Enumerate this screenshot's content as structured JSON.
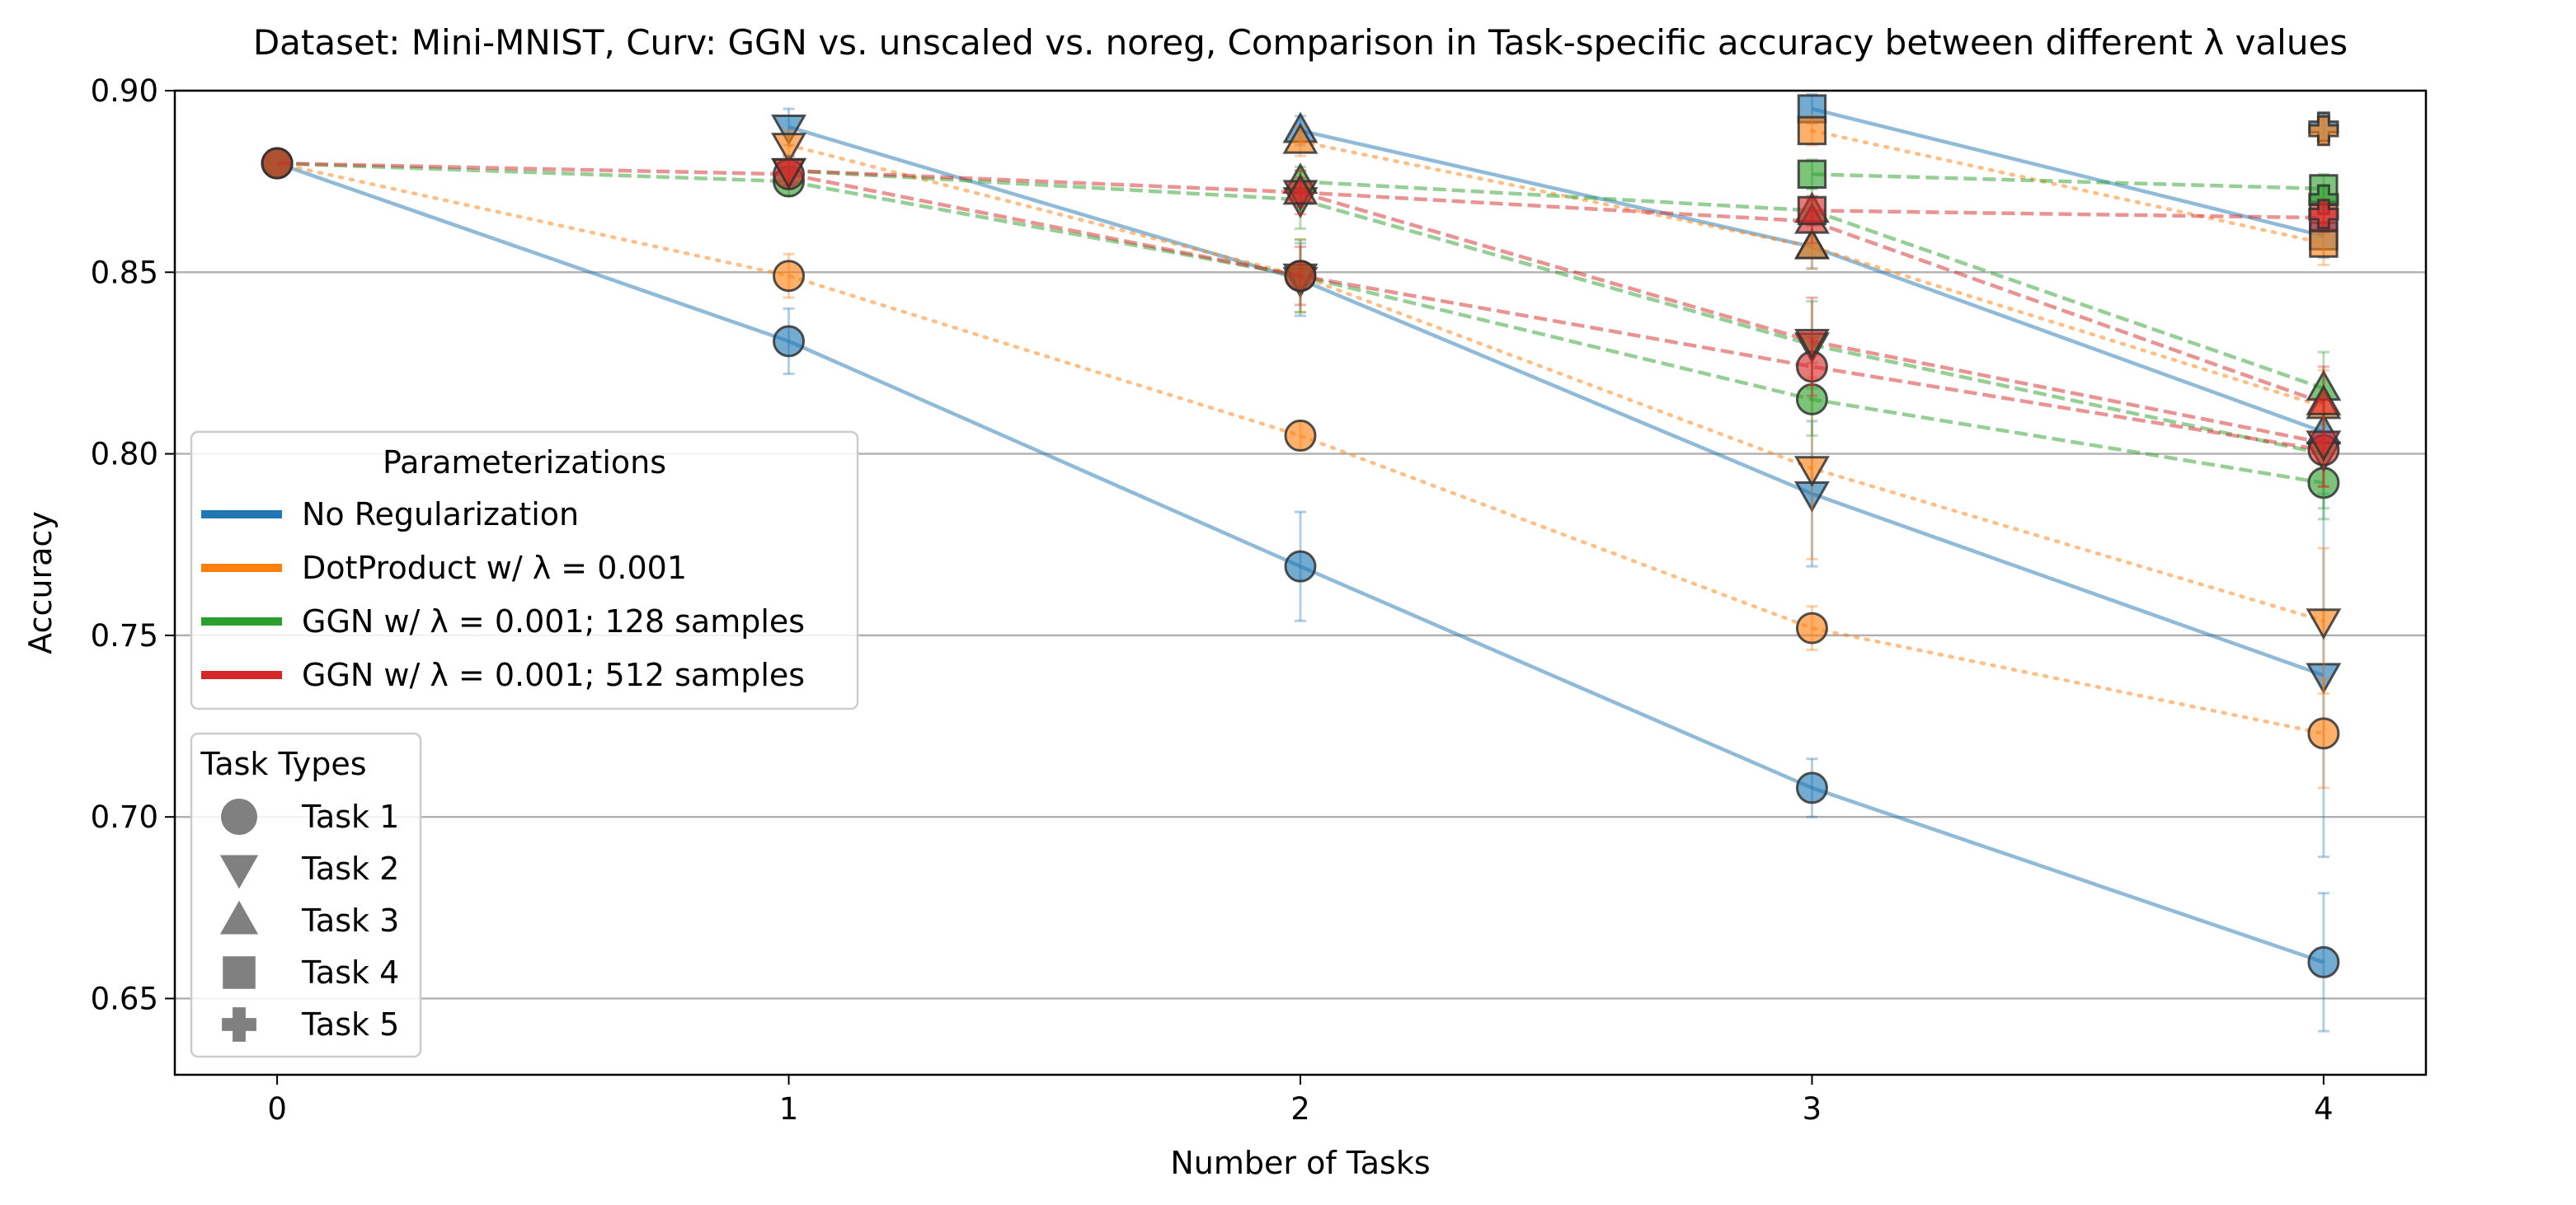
{
  "chart_data": {
    "type": "line",
    "title": "Dataset: Mini-MNIST, Curv: GGN vs. unscaled vs. noreg, Comparison in Task-specific accuracy between different λ values",
    "xlabel": "Number of Tasks",
    "ylabel": "Accuracy",
    "x_ticks": [
      0,
      1,
      2,
      3,
      4
    ],
    "y_ticks": [
      0.65,
      0.7,
      0.75,
      0.8,
      0.85,
      0.9
    ],
    "xlim": [
      -0.2,
      4.2
    ],
    "ylim": [
      0.629,
      0.9
    ],
    "grid": "horizontal",
    "legend_parameterizations": {
      "title": "Parameterizations",
      "placement": "center-left",
      "entries": [
        {
          "label": "No Regularization",
          "color": "#1f77b4"
        },
        {
          "label": "DotProduct w/ λ = 0.001",
          "color": "#ff7f0e"
        },
        {
          "label": "GGN w/ λ = 0.001; 128 samples",
          "color": "#2ca02c"
        },
        {
          "label": "GGN w/ λ = 0.001; 512 samples",
          "color": "#d62728"
        }
      ]
    },
    "legend_tasks": {
      "title": "Task Types",
      "placement": "lower-left",
      "entries": [
        {
          "label": "Task 1",
          "marker": "circle"
        },
        {
          "label": "Task 2",
          "marker": "triangle-down"
        },
        {
          "label": "Task 3",
          "marker": "triangle-up"
        },
        {
          "label": "Task 4",
          "marker": "square"
        },
        {
          "label": "Task 5",
          "marker": "plus"
        }
      ]
    },
    "series": [
      {
        "param": 0,
        "task": 1,
        "x": [
          0,
          1,
          2,
          3,
          4
        ],
        "y": [
          0.88,
          0.831,
          0.769,
          0.708,
          0.66
        ],
        "err": [
          0,
          0.009,
          0.015,
          0.008,
          0.019
        ]
      },
      {
        "param": 0,
        "task": 2,
        "x": [
          1,
          2,
          3,
          4
        ],
        "y": [
          0.89,
          0.848,
          0.789,
          0.739
        ],
        "err": [
          0.005,
          0.01,
          0.02,
          0.05
        ]
      },
      {
        "param": 0,
        "task": 3,
        "x": [
          2,
          3,
          4
        ],
        "y": [
          0.889,
          0.857,
          0.806
        ],
        "err": [
          0.004,
          0.006,
          0.01
        ]
      },
      {
        "param": 0,
        "task": 4,
        "x": [
          3,
          4
        ],
        "y": [
          0.895,
          0.86
        ],
        "err": [
          0.004,
          0.006
        ]
      },
      {
        "param": 0,
        "task": 5,
        "x": [
          4
        ],
        "y": [
          0.89
        ],
        "err": [
          0.004
        ]
      },
      {
        "param": 1,
        "task": 1,
        "x": [
          0,
          1,
          2,
          3,
          4
        ],
        "y": [
          0.88,
          0.849,
          0.805,
          0.752,
          0.723
        ],
        "err": [
          0,
          0.006,
          0.004,
          0.006,
          0.015
        ]
      },
      {
        "param": 1,
        "task": 2,
        "x": [
          1,
          2,
          3,
          4
        ],
        "y": [
          0.885,
          0.849,
          0.796,
          0.754
        ],
        "err": [
          0.004,
          0.01,
          0.025,
          0.02
        ]
      },
      {
        "param": 1,
        "task": 3,
        "x": [
          2,
          3,
          4
        ],
        "y": [
          0.886,
          0.857,
          0.813
        ],
        "err": [
          0.004,
          0.006,
          0.01
        ]
      },
      {
        "param": 1,
        "task": 4,
        "x": [
          3,
          4
        ],
        "y": [
          0.889,
          0.858
        ],
        "err": [
          0.004,
          0.006
        ]
      },
      {
        "param": 1,
        "task": 5,
        "x": [
          4
        ],
        "y": [
          0.889
        ],
        "err": [
          0.004
        ]
      },
      {
        "param": 2,
        "task": 1,
        "x": [
          0,
          1,
          2,
          3,
          4
        ],
        "y": [
          0.88,
          0.875,
          0.849,
          0.815,
          0.792
        ],
        "err": [
          0,
          0.004,
          0.01,
          0.01,
          0.01
        ]
      },
      {
        "param": 2,
        "task": 2,
        "x": [
          1,
          2,
          3,
          4
        ],
        "y": [
          0.878,
          0.87,
          0.83,
          0.8
        ],
        "err": [
          0.004,
          0.008,
          0.012,
          0.015
        ]
      },
      {
        "param": 2,
        "task": 3,
        "x": [
          2,
          3,
          4
        ],
        "y": [
          0.875,
          0.867,
          0.818
        ],
        "err": [
          0.004,
          0.006,
          0.01
        ]
      },
      {
        "param": 2,
        "task": 4,
        "x": [
          3,
          4
        ],
        "y": [
          0.877,
          0.873
        ],
        "err": [
          0.004,
          0.004
        ]
      },
      {
        "param": 2,
        "task": 5,
        "x": [
          4
        ],
        "y": [
          0.87
        ],
        "err": [
          0.004
        ]
      },
      {
        "param": 3,
        "task": 1,
        "x": [
          0,
          1,
          2,
          3,
          4
        ],
        "y": [
          0.88,
          0.877,
          0.849,
          0.824,
          0.801
        ],
        "err": [
          0,
          0.004,
          0.008,
          0.008,
          0.01
        ]
      },
      {
        "param": 3,
        "task": 2,
        "x": [
          1,
          2,
          3,
          4
        ],
        "y": [
          0.878,
          0.872,
          0.831,
          0.803
        ],
        "err": [
          0.004,
          0.006,
          0.012,
          0.012
        ]
      },
      {
        "param": 3,
        "task": 3,
        "x": [
          2,
          3,
          4
        ],
        "y": [
          0.872,
          0.864,
          0.814
        ],
        "err": [
          0.004,
          0.006,
          0.01
        ]
      },
      {
        "param": 3,
        "task": 4,
        "x": [
          3,
          4
        ],
        "y": [
          0.867,
          0.865
        ],
        "err": [
          0.004,
          0.004
        ]
      },
      {
        "param": 3,
        "task": 5,
        "x": [
          4
        ],
        "y": [
          0.866
        ],
        "err": [
          0.004
        ]
      }
    ]
  }
}
